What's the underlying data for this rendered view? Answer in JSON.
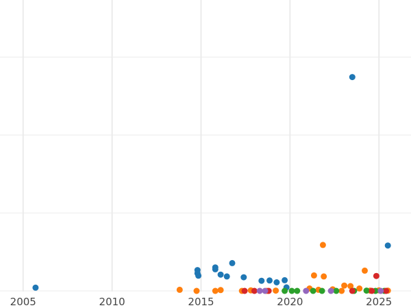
{
  "chart_data": {
    "type": "scatter",
    "title": "",
    "xlabel": "",
    "ylabel": "",
    "grid": true,
    "legend": "none",
    "xlim": [
      2003.7,
      2026.8
    ],
    "ylim": [
      0,
      100
    ],
    "x_ticks": [
      2005,
      2010,
      2015,
      2020,
      2025
    ],
    "x_tick_labels": [
      "2005",
      "2010",
      "2015",
      "2020",
      "2025"
    ],
    "y_ticks": [
      0,
      29.2,
      58.4,
      87.6
    ],
    "series": [
      {
        "color": "#1f77b4",
        "points": [
          [
            2005.7,
            1.2
          ],
          [
            2014.8,
            7.8
          ],
          [
            2014.8,
            6.6
          ],
          [
            2014.85,
            5.7
          ],
          [
            2015.8,
            8.1
          ],
          [
            2015.8,
            8.8
          ],
          [
            2016.1,
            6.1
          ],
          [
            2016.45,
            5.4
          ],
          [
            2016.75,
            10.4
          ],
          [
            2017.4,
            5.1
          ],
          [
            2018.4,
            3.8
          ],
          [
            2018.85,
            3.9
          ],
          [
            2019.25,
            3.2
          ],
          [
            2019.7,
            4.0
          ],
          [
            2019.8,
            1.3
          ],
          [
            2023.5,
            80.1
          ],
          [
            2025.5,
            17.0
          ]
        ]
      },
      {
        "color": "#ff7f0e",
        "points": [
          [
            2013.8,
            0.4
          ],
          [
            2014.75,
            0.0
          ],
          [
            2015.8,
            0.0
          ],
          [
            2016.1,
            0.3
          ],
          [
            2017.3,
            0.0
          ],
          [
            2017.8,
            0.2
          ],
          [
            2018.7,
            0.0
          ],
          [
            2019.2,
            0.1
          ],
          [
            2021.1,
            0.9
          ],
          [
            2021.35,
            5.8
          ],
          [
            2021.6,
            0.4
          ],
          [
            2021.9,
            5.4
          ],
          [
            2021.85,
            17.2
          ],
          [
            2022.4,
            0.6
          ],
          [
            2022.9,
            0.0
          ],
          [
            2023.05,
            2.0
          ],
          [
            2023.4,
            1.8
          ],
          [
            2023.9,
            0.9
          ],
          [
            2024.2,
            7.6
          ],
          [
            2024.5,
            0.1
          ],
          [
            2025.0,
            0.2
          ],
          [
            2025.5,
            0.1
          ]
        ]
      },
      {
        "color": "#2ca02c",
        "points": [
          [
            2019.7,
            0.0
          ],
          [
            2020.1,
            0.0
          ],
          [
            2020.4,
            0.0
          ],
          [
            2021.3,
            0.0
          ],
          [
            2021.8,
            0.0
          ],
          [
            2022.6,
            0.0
          ],
          [
            2023.6,
            0.0
          ],
          [
            2024.3,
            0.1
          ],
          [
            2024.8,
            0.0
          ],
          [
            2025.3,
            0.0
          ]
        ]
      },
      {
        "color": "#d62728",
        "points": [
          [
            2017.45,
            0.0
          ],
          [
            2018.0,
            0.0
          ],
          [
            2018.8,
            0.0
          ],
          [
            2023.5,
            0.0
          ],
          [
            2024.6,
            0.0
          ],
          [
            2024.85,
            5.6
          ],
          [
            2025.4,
            0.0
          ]
        ]
      },
      {
        "color": "#9467bd",
        "points": [
          [
            2018.3,
            0.0
          ],
          [
            2018.6,
            0.0
          ],
          [
            2020.9,
            0.0
          ],
          [
            2022.3,
            0.0
          ],
          [
            2025.1,
            0.0
          ]
        ]
      }
    ]
  }
}
